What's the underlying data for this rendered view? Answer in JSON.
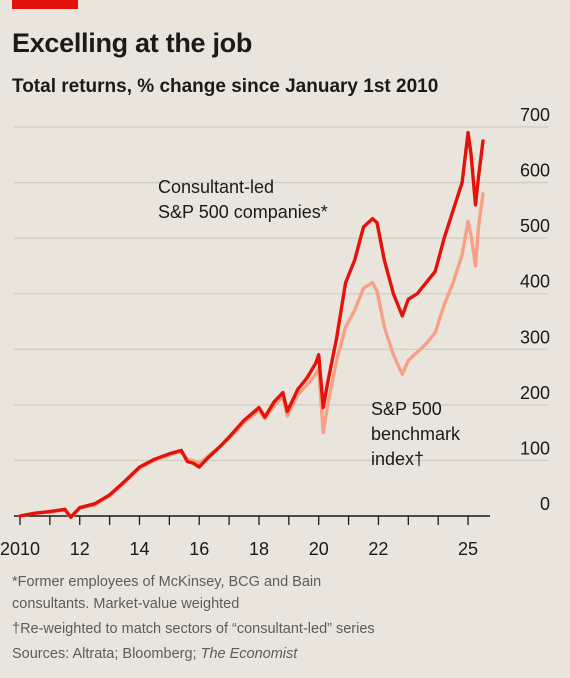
{
  "chart_data": {
    "type": "line",
    "title": "Excelling at the job",
    "subtitle": "Total returns, % change since January 1st 2010",
    "xlabel": "",
    "ylabel": "",
    "x_ticks": [
      "2010",
      "12",
      "14",
      "16",
      "18",
      "20",
      "22",
      "25"
    ],
    "x_tick_years": [
      2010,
      2012,
      2014,
      2016,
      2018,
      2020,
      2022,
      2025
    ],
    "y_ticks": [
      "0",
      "100",
      "200",
      "300",
      "400",
      "500",
      "600",
      "700"
    ],
    "ylim": [
      0,
      700
    ],
    "xlim": [
      2010,
      2025.5
    ],
    "grid": true,
    "series": [
      {
        "name": "Consultant-led S&P 500 companies*",
        "color": "#e3120b",
        "points": [
          [
            2010.0,
            0
          ],
          [
            2010.5,
            5
          ],
          [
            2011.0,
            8
          ],
          [
            2011.5,
            12
          ],
          [
            2011.7,
            -2
          ],
          [
            2012.0,
            15
          ],
          [
            2012.5,
            22
          ],
          [
            2013.0,
            38
          ],
          [
            2013.5,
            62
          ],
          [
            2014.0,
            88
          ],
          [
            2014.5,
            102
          ],
          [
            2015.0,
            112
          ],
          [
            2015.4,
            118
          ],
          [
            2015.6,
            98
          ],
          [
            2015.8,
            95
          ],
          [
            2016.0,
            88
          ],
          [
            2016.3,
            105
          ],
          [
            2016.7,
            125
          ],
          [
            2017.0,
            142
          ],
          [
            2017.5,
            172
          ],
          [
            2018.0,
            195
          ],
          [
            2018.2,
            178
          ],
          [
            2018.5,
            205
          ],
          [
            2018.8,
            222
          ],
          [
            2018.95,
            188
          ],
          [
            2019.3,
            228
          ],
          [
            2019.6,
            248
          ],
          [
            2019.9,
            275
          ],
          [
            2020.0,
            290
          ],
          [
            2020.15,
            195
          ],
          [
            2020.3,
            240
          ],
          [
            2020.6,
            320
          ],
          [
            2020.9,
            420
          ],
          [
            2021.2,
            460
          ],
          [
            2021.5,
            520
          ],
          [
            2021.8,
            535
          ],
          [
            2021.95,
            528
          ],
          [
            2022.2,
            460
          ],
          [
            2022.5,
            400
          ],
          [
            2022.8,
            360
          ],
          [
            2023.0,
            390
          ],
          [
            2023.3,
            400
          ],
          [
            2023.6,
            420
          ],
          [
            2023.9,
            440
          ],
          [
            2024.2,
            500
          ],
          [
            2024.5,
            550
          ],
          [
            2024.8,
            600
          ],
          [
            2025.0,
            690
          ],
          [
            2025.1,
            650
          ],
          [
            2025.25,
            560
          ],
          [
            2025.35,
            610
          ],
          [
            2025.5,
            675
          ]
        ]
      },
      {
        "name": "S&P 500 benchmark index†",
        "color": "#f7a085",
        "points": [
          [
            2010.0,
            0
          ],
          [
            2010.5,
            5
          ],
          [
            2011.0,
            7
          ],
          [
            2011.5,
            11
          ],
          [
            2011.7,
            -3
          ],
          [
            2012.0,
            14
          ],
          [
            2012.5,
            20
          ],
          [
            2013.0,
            36
          ],
          [
            2013.5,
            60
          ],
          [
            2014.0,
            86
          ],
          [
            2014.5,
            100
          ],
          [
            2015.0,
            110
          ],
          [
            2015.4,
            116
          ],
          [
            2015.6,
            102
          ],
          [
            2015.8,
            100
          ],
          [
            2016.0,
            95
          ],
          [
            2016.3,
            108
          ],
          [
            2016.7,
            125
          ],
          [
            2017.0,
            140
          ],
          [
            2017.5,
            168
          ],
          [
            2018.0,
            190
          ],
          [
            2018.2,
            175
          ],
          [
            2018.5,
            198
          ],
          [
            2018.8,
            215
          ],
          [
            2018.95,
            180
          ],
          [
            2019.3,
            218
          ],
          [
            2019.6,
            236
          ],
          [
            2019.9,
            255
          ],
          [
            2020.0,
            265
          ],
          [
            2020.15,
            150
          ],
          [
            2020.3,
            200
          ],
          [
            2020.6,
            280
          ],
          [
            2020.9,
            340
          ],
          [
            2021.2,
            370
          ],
          [
            2021.5,
            410
          ],
          [
            2021.8,
            420
          ],
          [
            2021.95,
            405
          ],
          [
            2022.2,
            340
          ],
          [
            2022.5,
            290
          ],
          [
            2022.8,
            255
          ],
          [
            2023.0,
            280
          ],
          [
            2023.3,
            295
          ],
          [
            2023.6,
            310
          ],
          [
            2023.9,
            330
          ],
          [
            2024.2,
            380
          ],
          [
            2024.5,
            420
          ],
          [
            2024.8,
            470
          ],
          [
            2025.0,
            530
          ],
          [
            2025.1,
            505
          ],
          [
            2025.25,
            450
          ],
          [
            2025.35,
            520
          ],
          [
            2025.5,
            580
          ]
        ]
      }
    ],
    "annotations": {
      "consultant_line1": "Consultant-led",
      "consultant_line2": "S&P 500 companies*",
      "benchmark_line1": "S&P 500",
      "benchmark_line2": "benchmark",
      "benchmark_line3": "index†"
    }
  },
  "footnotes": {
    "line1": "*Former employees of McKinsey, BCG and Bain",
    "line2": "consultants. Market-value weighted",
    "line3": "†Re-weighted to match sectors of “consultant-led” series",
    "line4_prefix": "Sources: Altrata; Bloomberg; ",
    "line4_italic": "The Economist"
  },
  "colors": {
    "brand": "#e3120b",
    "background": "#e9e5dc",
    "grid": "#d1ccc2"
  }
}
